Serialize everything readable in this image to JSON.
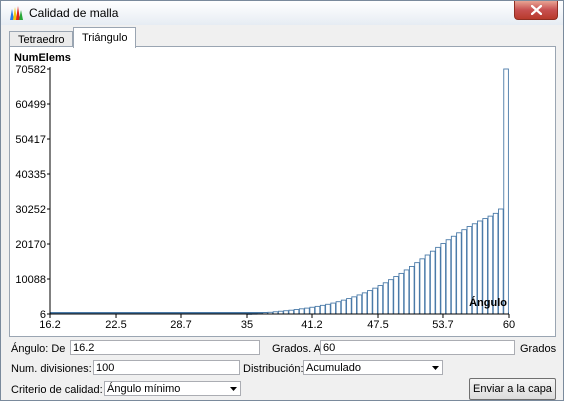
{
  "window": {
    "title": "Calidad de malla",
    "icon": "app-color-bars-icon",
    "close_icon": "close-icon"
  },
  "tabs": [
    {
      "label": "Tetraedro",
      "active": false
    },
    {
      "label": "Triángulo",
      "active": true
    }
  ],
  "controls": {
    "angle_from_label": "Ángulo: De",
    "angle_from_value": "16.2",
    "angle_to_label": "Grados. A",
    "angle_to_value": "60",
    "degrees_label": "Grados",
    "divisions_label": "Num. divisiones:",
    "divisions_value": "100",
    "distribution_label": "Distribución:",
    "distribution_value": "Acumulado",
    "criterion_label": "Criterio de calidad:",
    "criterion_value": "Ángulo mínimo",
    "send_button_label": "Enviar a la capa"
  },
  "chart_data": {
    "type": "bar",
    "ylabel": "NumElems",
    "xlabel": "Ángulo",
    "xlim": [
      16.2,
      60
    ],
    "ylim": [
      6,
      70582
    ],
    "y_ticks": [
      "6",
      "10088",
      "20170",
      "30252",
      "40335",
      "50417",
      "60499",
      "70582"
    ],
    "x_ticks": [
      "16.2",
      "22.5",
      "28.7",
      "35",
      "41.2",
      "47.5",
      "53.7",
      "60"
    ],
    "bar_color": "#4a7aa8",
    "grid": false,
    "x": [
      35.0,
      35.5,
      36.0,
      36.5,
      37.0,
      37.5,
      38.0,
      38.5,
      39.0,
      39.5,
      40.0,
      40.5,
      41.0,
      41.5,
      42.0,
      42.5,
      43.0,
      43.5,
      44.0,
      44.5,
      45.0,
      45.5,
      46.0,
      46.5,
      47.0,
      47.5,
      48.0,
      48.5,
      49.0,
      49.5,
      50.0,
      50.5,
      51.0,
      51.5,
      52.0,
      52.5,
      53.0,
      53.5,
      54.0,
      54.5,
      55.0,
      55.5,
      56.0,
      56.5,
      57.0,
      57.5,
      58.0,
      58.5,
      59.0,
      59.5
    ],
    "values": [
      200,
      250,
      300,
      400,
      500,
      650,
      800,
      950,
      1100,
      1300,
      1500,
      1700,
      1950,
      2200,
      2500,
      2800,
      3150,
      3550,
      4000,
      4450,
      4950,
      5500,
      6100,
      6750,
      7450,
      8200,
      9000,
      9900,
      10800,
      11700,
      12700,
      13700,
      14800,
      15900,
      17000,
      18100,
      19200,
      20300,
      21400,
      22400,
      23400,
      24300,
      25200,
      26000,
      26800,
      27500,
      28200,
      29000,
      30252,
      70582
    ]
  }
}
